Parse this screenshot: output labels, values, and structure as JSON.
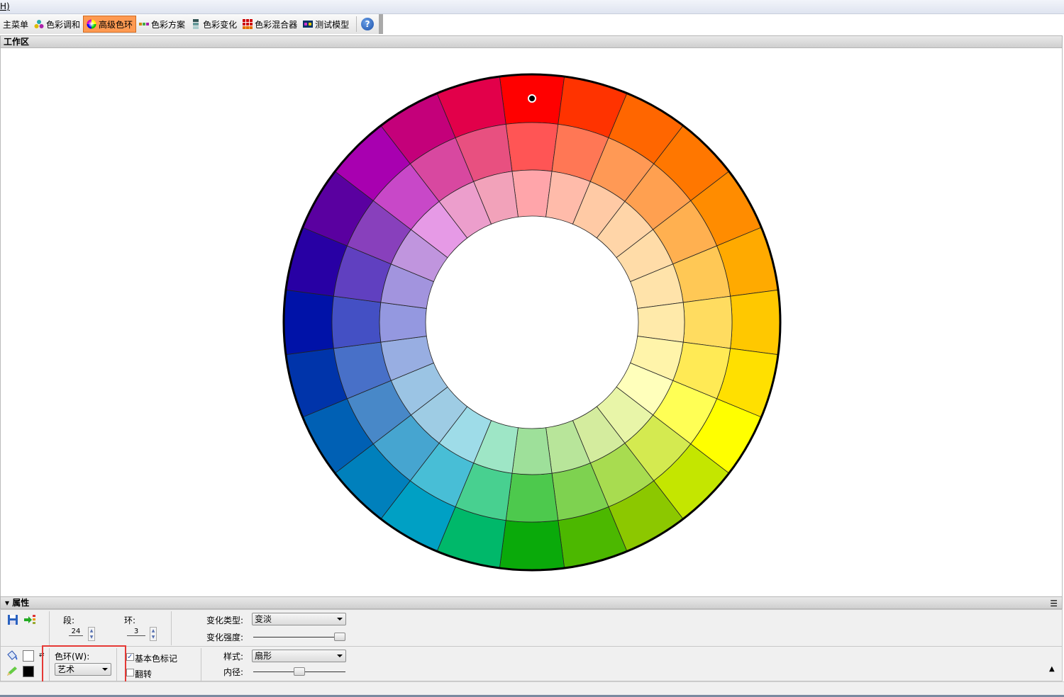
{
  "menubar": {
    "partial_item": "H)"
  },
  "toolbar": {
    "items": [
      {
        "label": "主菜单",
        "icon": "menu-icon",
        "active": false
      },
      {
        "label": "色彩调和",
        "icon": "color-harmony-icon",
        "active": false
      },
      {
        "label": "高级色环",
        "icon": "color-wheel-icon",
        "active": true
      },
      {
        "label": "色彩方案",
        "icon": "color-scheme-icon",
        "active": false
      },
      {
        "label": "色彩变化",
        "icon": "color-variation-icon",
        "active": false
      },
      {
        "label": "色彩混合器",
        "icon": "color-mixer-icon",
        "active": false
      },
      {
        "label": "测试模型",
        "icon": "test-model-icon",
        "active": false
      }
    ],
    "help_label": "?"
  },
  "workspace": {
    "title": "工作区"
  },
  "wheel": {
    "segments": 24,
    "rings": 3,
    "selected_segment": 0,
    "outer_colors": [
      "#FF0000",
      "#FF3300",
      "#FF6600",
      "#FF7700",
      "#FF8C00",
      "#FFAA00",
      "#FFC800",
      "#FFE000",
      "#FFFF00",
      "#C4E600",
      "#8CC800",
      "#4CB800",
      "#0AAA0A",
      "#00B86A",
      "#00A0C4",
      "#0080BC",
      "#0060B4",
      "#0034AA",
      "#0012A8",
      "#2800A4",
      "#5A00A0",
      "#A800B0",
      "#C4007A",
      "#E2004A"
    ],
    "middle_colors": [
      "#FF5555",
      "#FF7755",
      "#FF9955",
      "#FFA050",
      "#FFB050",
      "#FFC855",
      "#FFDC60",
      "#FFEA55",
      "#FFFF55",
      "#D4EA50",
      "#A8DC50",
      "#7ED250",
      "#4DC94D",
      "#48D090",
      "#48BED6",
      "#46A5D0",
      "#4888C8",
      "#4870C8",
      "#4450C4",
      "#6040C0",
      "#8840BC",
      "#C848C8",
      "#D848A0",
      "#E85080"
    ],
    "inner_colors": [
      "#FFA5AA",
      "#FFBBAA",
      "#FFCAA5",
      "#FFD5A8",
      "#FFDCA8",
      "#FFE3AA",
      "#FFEAAA",
      "#FFF4AA",
      "#FFFFBB",
      "#E8F5A8",
      "#D4EC9E",
      "#B8E59A",
      "#9EE09A",
      "#9EE6C6",
      "#9EDCE8",
      "#9ECCE4",
      "#9BC4E4",
      "#98AEE2",
      "#9498E0",
      "#A294DE",
      "#C095DE",
      "#E69AE6",
      "#EC9ECC",
      "#F2A2BA"
    ]
  },
  "properties": {
    "title": "属性",
    "segments_label": "段:",
    "segments_value": "24",
    "rings_label": "环:",
    "rings_value": "3",
    "change_type_label": "变化类型:",
    "change_type_value": "变淡",
    "change_strength_label": "变化强度:",
    "change_strength_level": 1.0,
    "wheel_label": "色环(W):",
    "wheel_value": "艺术",
    "basic_marker_label": "基本色标记",
    "basic_marker_checked": true,
    "flip_label": "翻转",
    "flip_checked": false,
    "style_label": "样式:",
    "style_value": "扇形",
    "inner_radius_label": "内径:",
    "inner_radius_level": 0.5,
    "fill_color": "#FFFFFF",
    "stroke_color": "#000000",
    "highlight_color": "#E53935"
  }
}
